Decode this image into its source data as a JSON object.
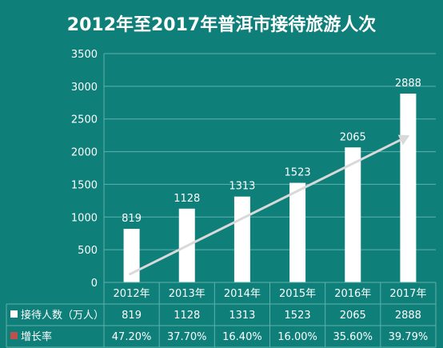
{
  "chart_data": {
    "type": "bar",
    "title": "2012年至2017年普洱市接待旅游人次",
    "categories": [
      "2012年",
      "2013年",
      "2014年",
      "2015年",
      "2016年",
      "2017年"
    ],
    "series": [
      {
        "name": "接待人数（万人）",
        "values": [
          819,
          1128,
          1313,
          1523,
          2065,
          2888
        ]
      }
    ],
    "ylim": [
      0,
      3500
    ],
    "yticks": [
      0,
      500,
      1000,
      1500,
      2000,
      2500,
      3000,
      3500
    ],
    "grid": true,
    "trend_arrow": true,
    "data_table": {
      "rows": [
        {
          "label": "接待人数（万人）",
          "marker_color": "#ffffff",
          "values": [
            "819",
            "1128",
            "1313",
            "1523",
            "2065",
            "2888"
          ]
        },
        {
          "label": "增长率",
          "marker_color": "#c0504d",
          "values": [
            "47.20%",
            "37.70%",
            "16.40%",
            "16.00%",
            "35.60%",
            "39.79%"
          ]
        }
      ]
    },
    "colors": {
      "background": "#0f7f7a",
      "bar": "#ffffff",
      "arrow": "#d9d9d9",
      "grid": "#5fb0ab"
    }
  }
}
